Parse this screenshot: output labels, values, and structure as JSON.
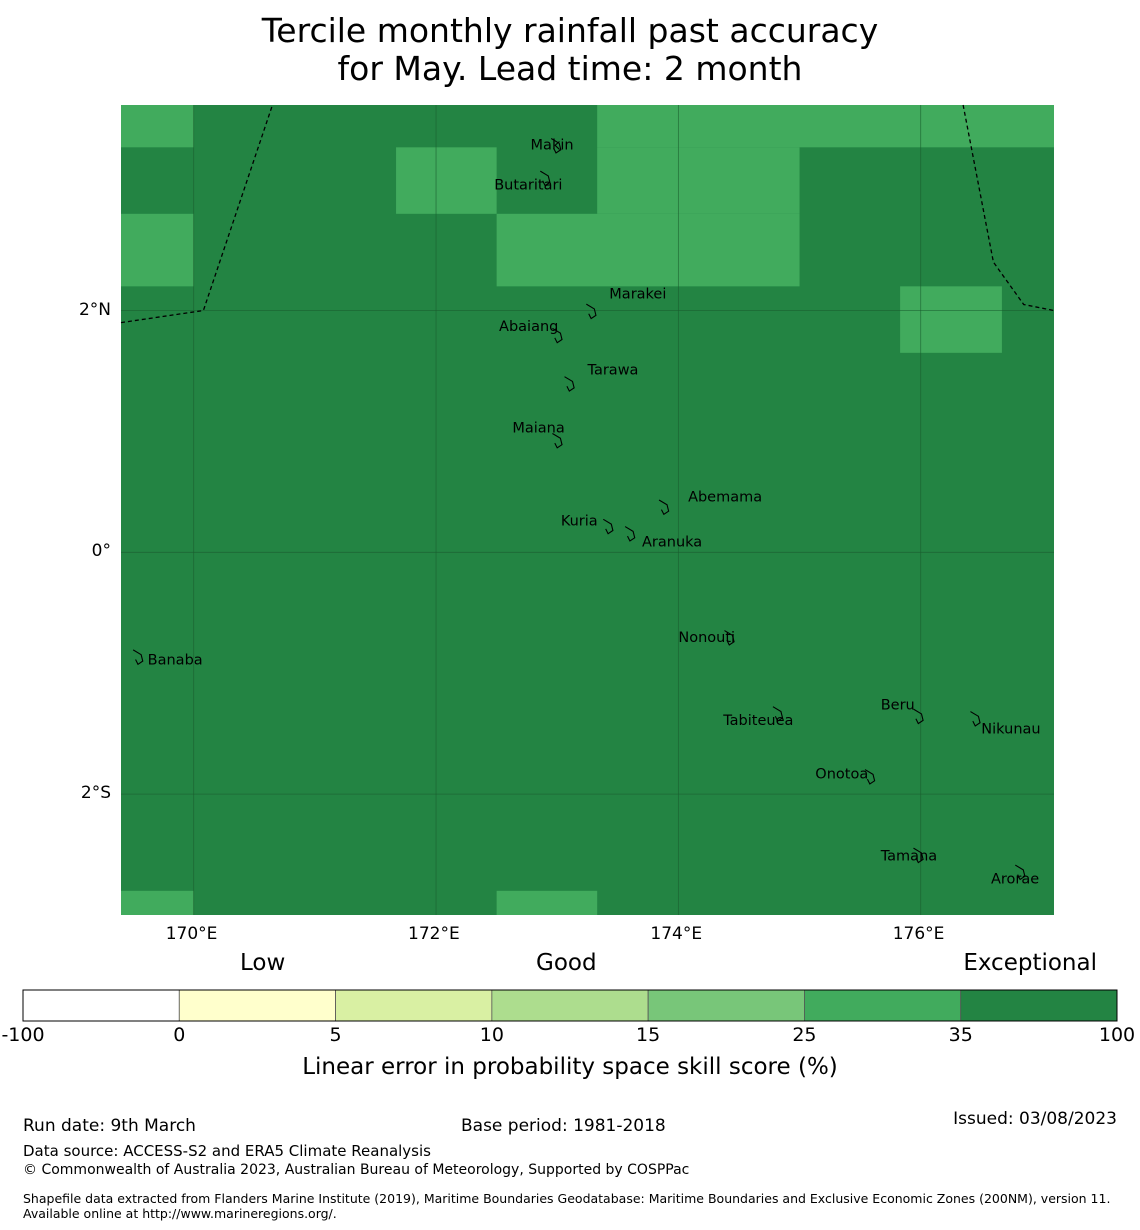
{
  "title": {
    "line1": "Tercile monthly rainfall past accuracy",
    "line2": "for May. Lead time: 2 month"
  },
  "map": {
    "lon_range": [
      169.4,
      177.1
    ],
    "lat_range": [
      -3.0,
      3.7
    ],
    "x_ticks": [
      {
        "lon": 170,
        "label": "170°E"
      },
      {
        "lon": 172,
        "label": "172°E"
      },
      {
        "lon": 174,
        "label": "174°E"
      },
      {
        "lon": 176,
        "label": "176°E"
      }
    ],
    "y_ticks": [
      {
        "lat": 2,
        "label": "2°N"
      },
      {
        "lat": 0,
        "label": "0°"
      },
      {
        "lat": -2,
        "label": "2°S"
      }
    ],
    "colors": {
      "exceptional": "#238443",
      "very_good": "#41ab5d",
      "grid": "#1a5c2e",
      "coast": "#000000"
    },
    "skill_cells_25_35": [
      {
        "lon": [
          169.4,
          170.0
        ],
        "lat": [
          3.35,
          3.7
        ]
      },
      {
        "lon": [
          171.67,
          172.5
        ],
        "lat": [
          2.8,
          3.35
        ]
      },
      {
        "lon": [
          173.33,
          176.0
        ],
        "lat": [
          3.35,
          3.7
        ]
      },
      {
        "lon": [
          176.0,
          177.1
        ],
        "lat": [
          3.35,
          3.7
        ]
      },
      {
        "lon": [
          173.33,
          175.0
        ],
        "lat": [
          2.8,
          3.35
        ]
      },
      {
        "lon": [
          169.4,
          170.0
        ],
        "lat": [
          2.2,
          2.8
        ]
      },
      {
        "lon": [
          172.5,
          175.0
        ],
        "lat": [
          2.2,
          2.8
        ]
      },
      {
        "lon": [
          175.83,
          176.67
        ],
        "lat": [
          1.65,
          2.2
        ]
      },
      {
        "lon": [
          169.4,
          170.0
        ],
        "lat": [
          -3.0,
          -2.8
        ]
      },
      {
        "lon": [
          172.5,
          173.33
        ],
        "lat": [
          -3.0,
          -2.8
        ]
      }
    ],
    "eez_boundary_west": [
      [
        169.4,
        1.9
      ],
      [
        170.08,
        2.0
      ],
      [
        170.65,
        3.7
      ]
    ],
    "eez_boundary_east": [
      [
        176.35,
        3.7
      ],
      [
        176.6,
        2.4
      ],
      [
        176.85,
        2.05
      ],
      [
        177.1,
        2.0
      ]
    ],
    "islands": [
      {
        "name": "Makin",
        "lon": 172.99,
        "lat": 3.37,
        "label_lon": 172.78,
        "label_lat": 3.33
      },
      {
        "name": "Butaritari",
        "lon": 172.9,
        "lat": 3.1,
        "label_lon": 172.48,
        "label_lat": 3.0
      },
      {
        "name": "Marakei",
        "lon": 173.28,
        "lat": 2.0,
        "label_lon": 173.43,
        "label_lat": 2.1
      },
      {
        "name": "Abaiang",
        "lon": 173.0,
        "lat": 1.8,
        "label_lon": 172.52,
        "label_lat": 1.83
      },
      {
        "name": "Tarawa",
        "lon": 173.1,
        "lat": 1.4,
        "label_lon": 173.25,
        "label_lat": 1.47
      },
      {
        "name": "Maiana",
        "lon": 173.0,
        "lat": 0.93,
        "label_lon": 172.63,
        "label_lat": 0.99
      },
      {
        "name": "Abemama",
        "lon": 173.88,
        "lat": 0.38,
        "label_lon": 174.08,
        "label_lat": 0.42
      },
      {
        "name": "Kuria",
        "lon": 173.42,
        "lat": 0.22,
        "label_lon": 173.03,
        "label_lat": 0.22
      },
      {
        "name": "Aranuka",
        "lon": 173.6,
        "lat": 0.16,
        "label_lon": 173.7,
        "label_lat": 0.05
      },
      {
        "name": "Nonouti",
        "lon": 174.42,
        "lat": -0.7,
        "label_lon": 174.0,
        "label_lat": -0.74
      },
      {
        "name": "Banaba",
        "lon": 169.54,
        "lat": -0.86,
        "label_lon": 169.62,
        "label_lat": -0.93
      },
      {
        "name": "Tabiteuea",
        "lon": 174.82,
        "lat": -1.33,
        "label_lon": 174.37,
        "label_lat": -1.43
      },
      {
        "name": "Beru",
        "lon": 175.98,
        "lat": -1.35,
        "label_lon": 175.67,
        "label_lat": -1.3
      },
      {
        "name": "Nikunau",
        "lon": 176.45,
        "lat": -1.37,
        "label_lon": 176.5,
        "label_lat": -1.5
      },
      {
        "name": "Onotoa",
        "lon": 175.58,
        "lat": -1.85,
        "label_lon": 175.13,
        "label_lat": -1.87
      },
      {
        "name": "Tamana",
        "lon": 175.98,
        "lat": -2.5,
        "label_lon": 175.67,
        "label_lat": -2.55
      },
      {
        "name": "Arorae",
        "lon": 176.82,
        "lat": -2.64,
        "label_lon": 176.58,
        "label_lat": -2.74
      }
    ]
  },
  "colorbar": {
    "categories": [
      {
        "label": "Low",
        "align": "left"
      },
      {
        "label": "Good",
        "align": "center"
      },
      {
        "label": "Exceptional",
        "align": "right"
      }
    ],
    "bins": [
      {
        "from": -100,
        "to": 0,
        "color": "#ffffff"
      },
      {
        "from": 0,
        "to": 5,
        "color": "#ffffcc"
      },
      {
        "from": 5,
        "to": 10,
        "color": "#d9f0a3"
      },
      {
        "from": 10,
        "to": 15,
        "color": "#addd8e"
      },
      {
        "from": 15,
        "to": 25,
        "color": "#78c679"
      },
      {
        "from": 25,
        "to": 35,
        "color": "#41ab5d"
      },
      {
        "from": 35,
        "to": 100,
        "color": "#238443"
      }
    ],
    "tick_labels": [
      "-100",
      "0",
      "5",
      "10",
      "15",
      "25",
      "35",
      "100"
    ],
    "label": "Linear error in probability space skill score (%)"
  },
  "footer": {
    "run_date": "Run date: 9th March",
    "base_period": "Base period: 1981-2018",
    "issued": "Issued: 03/08/2023",
    "data_source": "Data source: ACCESS-S2 and ERA5 Climate Reanalysis",
    "copyright": "© Commonwealth of Australia 2023, Australian Bureau of Meteorology, Supported by COSPPac",
    "shapefile": "Shapefile data extracted from Flanders Marine Institute (2019), Maritime Boundaries Geodatabase: Maritime Boundaries and Exclusive Economic Zones (200NM), version 11. Available online at http://www.marineregions.org/."
  }
}
